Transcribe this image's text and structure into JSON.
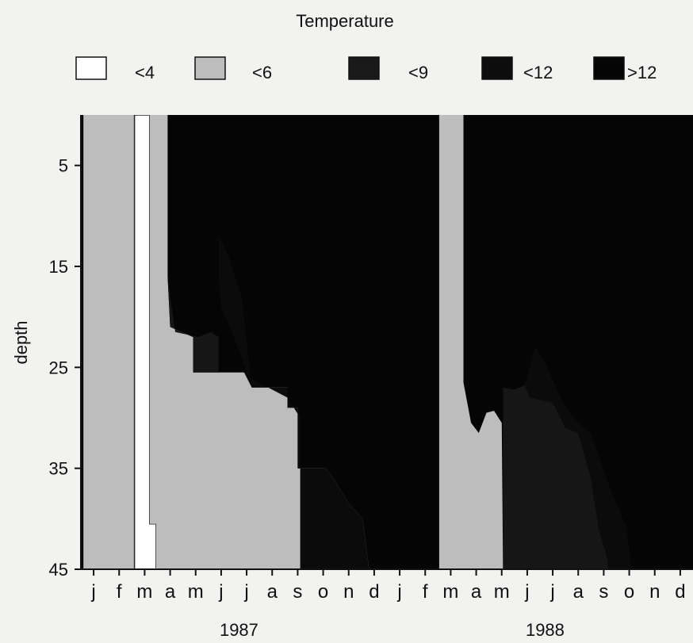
{
  "chart_data": {
    "type": "heatmap",
    "title": "Temperature",
    "ylabel": "depth",
    "xlabel": "",
    "ylim": [
      0,
      45
    ],
    "y_reversed": true,
    "y_ticks": [
      5,
      15,
      25,
      35,
      45
    ],
    "year_labels": [
      "1987",
      "1988"
    ],
    "x_ticks": [
      "j",
      "f",
      "m",
      "a",
      "m",
      "j",
      "j",
      "a",
      "s",
      "o",
      "n",
      "d",
      "j",
      "f",
      "m",
      "a",
      "m",
      "j",
      "j",
      "a",
      "s",
      "o",
      "n",
      "d"
    ],
    "x_domain_months": [
      0,
      24
    ],
    "legend": [
      {
        "label": "<4",
        "color": "#ffffff"
      },
      {
        "label": "<6",
        "color": "#bdbdbd"
      },
      {
        "label": "<9",
        "color": "#1a1a1a"
      },
      {
        "label": "<12",
        "color": "#0d0d0d"
      },
      {
        "label": ">12",
        "color": "#050505"
      }
    ],
    "regions": [
      {
        "class": "<6",
        "color": "#bdbdbd",
        "boundary": [
          [
            0.1,
            0
          ],
          [
            2.1,
            0
          ],
          [
            2.1,
            45
          ],
          [
            0.1,
            45
          ]
        ]
      },
      {
        "class": "<4",
        "color": "#ffffff",
        "boundary": [
          [
            2.1,
            0
          ],
          [
            2.7,
            0
          ],
          [
            2.7,
            40.5
          ],
          [
            2.95,
            40.5
          ],
          [
            2.95,
            45
          ],
          [
            2.1,
            45
          ]
        ]
      },
      {
        "class": "<6",
        "color": "#bdbdbd",
        "boundary": [
          [
            2.7,
            0
          ],
          [
            3.4,
            0
          ],
          [
            3.4,
            16
          ],
          [
            3.5,
            21
          ],
          [
            4.4,
            22
          ],
          [
            4.4,
            25.5
          ],
          [
            5.4,
            25.5
          ],
          [
            6.4,
            25.5
          ],
          [
            6.7,
            27
          ],
          [
            8.1,
            27
          ],
          [
            8.1,
            29
          ],
          [
            8.5,
            29
          ],
          [
            8.5,
            35
          ],
          [
            9.6,
            35
          ],
          [
            9.9,
            36
          ],
          [
            10.5,
            38.5
          ],
          [
            11.05,
            40
          ],
          [
            11.3,
            45
          ],
          [
            2.95,
            45
          ],
          [
            2.95,
            40.5
          ],
          [
            2.7,
            40.5
          ]
        ]
      },
      {
        "class": "<6",
        "color": "#bdbdbd",
        "boundary": [
          [
            14.05,
            0
          ],
          [
            15.0,
            0
          ],
          [
            15.0,
            45
          ],
          [
            14.05,
            45
          ]
        ]
      },
      {
        "class": "<6",
        "color": "#bdbdbd",
        "boundary": [
          [
            15.0,
            26.5
          ],
          [
            15.3,
            30.5
          ],
          [
            15.6,
            31.5
          ],
          [
            15.9,
            29.5
          ],
          [
            16.2,
            29.3
          ],
          [
            16.5,
            30.5
          ],
          [
            16.55,
            45
          ],
          [
            15.0,
            45
          ]
        ]
      },
      {
        "class": "<9",
        "color": "#161616",
        "boundary": [
          [
            3.4,
            16
          ],
          [
            3.5,
            21
          ],
          [
            4.4,
            22
          ],
          [
            4.4,
            25.5
          ],
          [
            5.4,
            25.5
          ],
          [
            5.4,
            22.0
          ],
          [
            5.1,
            21.5
          ],
          [
            4.6,
            22
          ],
          [
            3.7,
            21.5
          ],
          [
            3.5,
            18
          ]
        ]
      },
      {
        "class": "<9",
        "color": "#161616",
        "boundary": [
          [
            16.55,
            27
          ],
          [
            17.0,
            27.2
          ],
          [
            17.4,
            26.8
          ],
          [
            17.6,
            28
          ],
          [
            18.5,
            28.5
          ],
          [
            19.0,
            31
          ],
          [
            19.5,
            31.5
          ],
          [
            20.0,
            36
          ],
          [
            20.3,
            41
          ],
          [
            20.6,
            43.5
          ],
          [
            20.7,
            45
          ],
          [
            16.55,
            45
          ]
        ]
      },
      {
        "class": "<12",
        "color": "#0b0b0b",
        "boundary": [
          [
            5.4,
            12
          ],
          [
            5.8,
            14
          ],
          [
            6.3,
            18
          ],
          [
            6.7,
            27
          ],
          [
            8.1,
            27
          ],
          [
            8.1,
            29
          ],
          [
            8.5,
            29
          ],
          [
            8.5,
            35
          ],
          [
            9.6,
            35
          ],
          [
            9.9,
            36
          ],
          [
            10.5,
            38.5
          ],
          [
            11.05,
            40
          ],
          [
            11.3,
            45
          ],
          [
            8.6,
            45
          ],
          [
            8.6,
            30
          ],
          [
            8.1,
            28
          ],
          [
            6.6,
            26
          ],
          [
            6.0,
            22
          ],
          [
            5.5,
            19
          ],
          [
            5.4,
            16
          ]
        ]
      },
      {
        "class": "<12",
        "color": "#0b0b0b",
        "boundary": [
          [
            17.4,
            26.8
          ],
          [
            17.8,
            23
          ],
          [
            18.2,
            24.5
          ],
          [
            18.9,
            28.5
          ],
          [
            19.5,
            30.5
          ],
          [
            20.0,
            31.5
          ],
          [
            20.6,
            36
          ],
          [
            21.4,
            41
          ],
          [
            21.6,
            45
          ],
          [
            20.7,
            45
          ],
          [
            20.6,
            43.5
          ],
          [
            20.3,
            41
          ],
          [
            20.0,
            36
          ],
          [
            19.5,
            31.5
          ],
          [
            19.0,
            31
          ],
          [
            18.5,
            28.5
          ],
          [
            17.6,
            28
          ]
        ]
      }
    ],
    "background_class": ">12",
    "background_color": "#050505"
  }
}
